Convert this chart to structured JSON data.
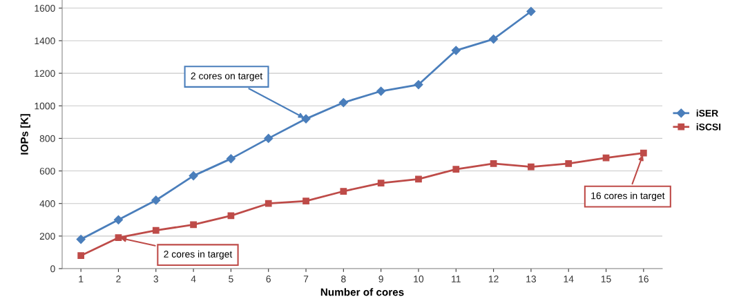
{
  "chart_data": {
    "type": "line",
    "xlabel": "Number of cores",
    "ylabel": "IOPs [K]",
    "categories": [
      "1",
      "2",
      "3",
      "4",
      "5",
      "6",
      "7",
      "8",
      "9",
      "10",
      "11",
      "12",
      "13",
      "14",
      "15",
      "16"
    ],
    "series": [
      {
        "name": "iSER",
        "color": "#4a7ebb",
        "marker": "diamond",
        "values": [
          180,
          300,
          420,
          570,
          675,
          800,
          920,
          1020,
          1090,
          1130,
          1340,
          1410,
          1580,
          null,
          null,
          null
        ]
      },
      {
        "name": "iSCSI",
        "color": "#be4b48",
        "marker": "square",
        "values": [
          80,
          190,
          235,
          270,
          325,
          400,
          415,
          475,
          525,
          550,
          610,
          645,
          625,
          645,
          680,
          710
        ]
      }
    ],
    "ylim": [
      0,
      1650
    ],
    "yticks": [
      0,
      200,
      400,
      600,
      800,
      1000,
      1200,
      1400,
      1600
    ],
    "grid": "y",
    "legend": "right",
    "line_style": "solid",
    "annotations": [
      {
        "text": "2 cores on target",
        "x": "7",
        "y": 920
      },
      {
        "text": "2 cores in target",
        "x": "2",
        "y": 190
      },
      {
        "text": "16 cores in target",
        "x": "16",
        "y": 710
      }
    ]
  }
}
